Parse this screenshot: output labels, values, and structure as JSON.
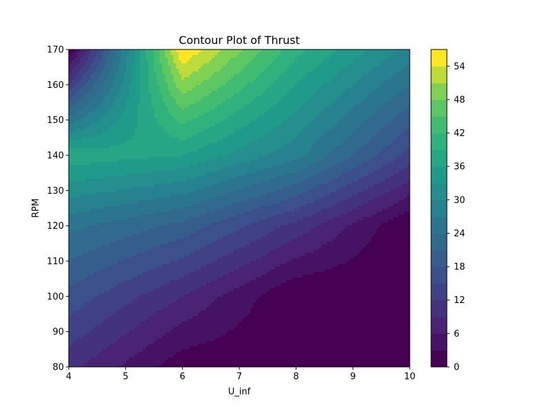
{
  "chart_data": {
    "type": "heatmap",
    "subtype": "filled-contour",
    "title": "Contour Plot of Thrust",
    "xlabel": "U_inf",
    "ylabel": "RPM",
    "xlim": [
      4,
      10
    ],
    "ylim": [
      80,
      170
    ],
    "x": [
      4,
      6,
      8,
      10
    ],
    "y": [
      80,
      100,
      120,
      140,
      170
    ],
    "z": [
      [
        10,
        1,
        0,
        0
      ],
      [
        17,
        9,
        0,
        0
      ],
      [
        25,
        20,
        11,
        0
      ],
      [
        38,
        36,
        28,
        14
      ],
      [
        0,
        57,
        40,
        29
      ]
    ],
    "xticks": [
      "4",
      "5",
      "6",
      "7",
      "8",
      "9",
      "10"
    ],
    "yticks": [
      "80",
      "90",
      "100",
      "110",
      "120",
      "130",
      "140",
      "150",
      "160",
      "170"
    ],
    "colorbar": {
      "min": 0,
      "max": 57,
      "ticks": [
        "0",
        "6",
        "12",
        "18",
        "24",
        "30",
        "36",
        "42",
        "48",
        "54"
      ],
      "colormap": "viridis"
    },
    "grid": false
  }
}
